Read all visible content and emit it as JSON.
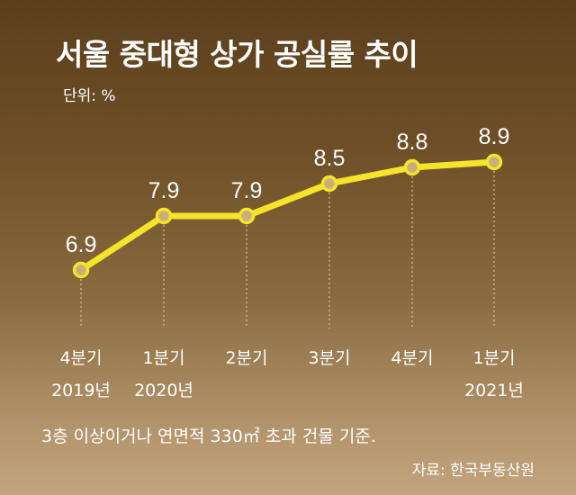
{
  "title": "서울 중대형 상가 공실률 추이",
  "unit_label": "단위: %",
  "note": "3층 이상이거나 연면적 330㎡ 초과 건물 기준.",
  "source": "자료: 한국부동산원",
  "colors": {
    "line": "#f5e52a",
    "label": "#ffffff",
    "guide": "#d8c4a4"
  },
  "chart_data": {
    "type": "line",
    "title": "서울 중대형 상가 공실률 추이",
    "ylabel": "단위: %",
    "categories": [
      [
        "4분기",
        "2019년"
      ],
      [
        "1분기",
        "2020년"
      ],
      [
        "2분기",
        ""
      ],
      [
        "3분기",
        ""
      ],
      [
        "4분기",
        ""
      ],
      [
        "1분기",
        "2021년"
      ]
    ],
    "series": [
      {
        "values": [
          6.9,
          7.9,
          7.9,
          8.5,
          8.8,
          8.9
        ]
      }
    ],
    "data_labels": [
      "6.9",
      "7.9",
      "7.9",
      "8.5",
      "8.8",
      "8.9"
    ],
    "ylim": [
      6.9,
      8.9
    ],
    "grid": false,
    "legend": "none"
  }
}
